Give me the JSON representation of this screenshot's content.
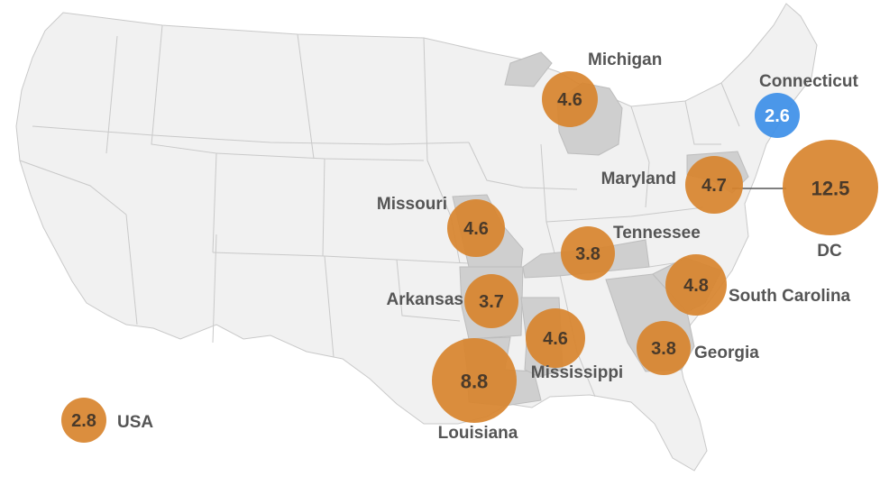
{
  "colors": {
    "bubble": "#d8842e",
    "highlight_bubble": "#3d8fe8",
    "value_text": "#4a3a2a",
    "highlight_value_text": "#ffffff",
    "label_text": "#555555",
    "state_fill": "#f1f1f1",
    "highlighted_state_fill": "#cfcfcf"
  },
  "legend": {
    "value": "2.8",
    "label": "USA"
  },
  "markers": [
    {
      "id": "michigan",
      "label": "Michigan",
      "value": "4.6"
    },
    {
      "id": "connecticut",
      "label": "Connecticut",
      "value": "2.6",
      "highlight": true
    },
    {
      "id": "maryland",
      "label": "Maryland",
      "value": "4.7"
    },
    {
      "id": "dc",
      "label": "DC",
      "value": "12.5"
    },
    {
      "id": "missouri",
      "label": "Missouri",
      "value": "4.6"
    },
    {
      "id": "tennessee",
      "label": "Tennessee",
      "value": "3.8"
    },
    {
      "id": "arkansas",
      "label": "Arkansas",
      "value": "3.7"
    },
    {
      "id": "south-carolina",
      "label": "South Carolina",
      "value": "4.8"
    },
    {
      "id": "mississippi",
      "label": "Mississippi",
      "value": "4.6"
    },
    {
      "id": "georgia",
      "label": "Georgia",
      "value": "3.8"
    },
    {
      "id": "louisiana",
      "label": "Louisiana",
      "value": "8.8"
    }
  ]
}
